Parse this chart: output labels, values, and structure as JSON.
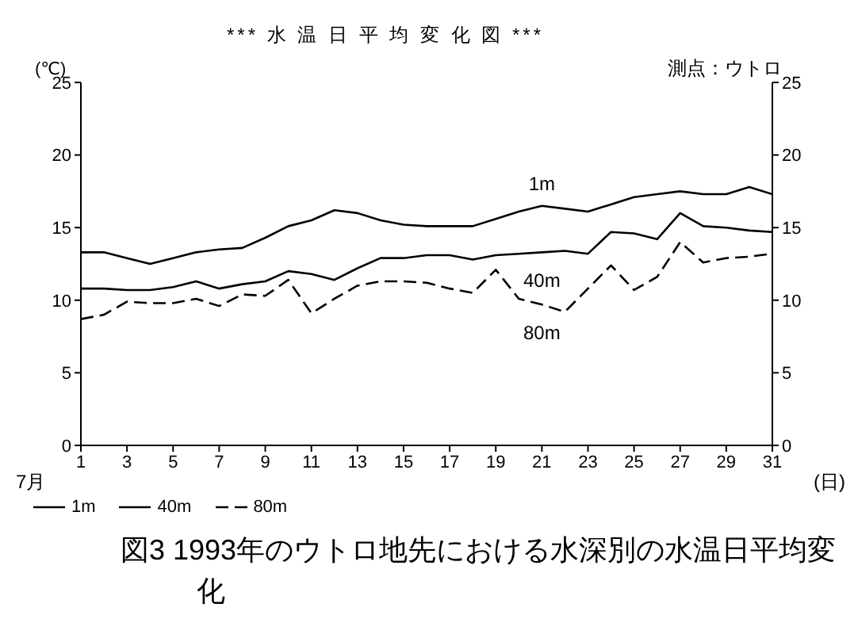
{
  "chart_data": {
    "type": "line",
    "title": "*** 水 温 日 平 均 変 化 図 ***",
    "subtitle": "測点：ウトロ",
    "ylabel": "(℃)",
    "xlabel": "(日)",
    "annotations": [
      "7月",
      "図3 1993年のウトロ地先における水深別の水温日平均変化"
    ],
    "x": [
      1,
      2,
      3,
      4,
      5,
      6,
      7,
      8,
      9,
      10,
      11,
      12,
      13,
      14,
      15,
      16,
      17,
      18,
      19,
      20,
      21,
      22,
      23,
      24,
      25,
      26,
      27,
      28,
      29,
      30,
      31
    ],
    "series": [
      {
        "name": "1m",
        "color": "#000000",
        "line_style": "solid",
        "values": [
          13.3,
          13.3,
          12.9,
          12.5,
          12.9,
          13.3,
          13.5,
          13.6,
          14.3,
          15.1,
          15.5,
          16.2,
          16.0,
          15.5,
          15.2,
          15.1,
          15.1,
          15.1,
          15.6,
          16.1,
          16.5,
          16.3,
          16.1,
          16.6,
          17.1,
          17.3,
          17.5,
          17.3,
          17.3,
          17.8,
          17.3
        ]
      },
      {
        "name": "40m",
        "color": "#000000",
        "line_style": "solid",
        "values": [
          10.8,
          10.8,
          10.7,
          10.7,
          10.9,
          11.3,
          10.8,
          11.1,
          11.3,
          12.0,
          11.8,
          11.4,
          12.2,
          12.9,
          12.9,
          13.1,
          13.1,
          12.8,
          13.1,
          13.2,
          13.3,
          13.4,
          13.2,
          14.7,
          14.6,
          14.2,
          16.0,
          15.1,
          15.0,
          14.8,
          14.7
        ]
      },
      {
        "name": "80m",
        "color": "#000000",
        "line_style": "dashed",
        "values": [
          8.7,
          9.0,
          9.9,
          9.8,
          9.8,
          10.1,
          9.6,
          10.4,
          10.3,
          11.4,
          9.1,
          10.1,
          11.0,
          11.3,
          11.3,
          11.2,
          10.8,
          10.5,
          12.1,
          10.1,
          9.7,
          9.2,
          10.8,
          12.4,
          10.7,
          11.6,
          14.0,
          12.6,
          12.9,
          13.0,
          13.2
        ]
      }
    ],
    "xlim": [
      1,
      31
    ],
    "xticks": [
      1,
      3,
      5,
      7,
      9,
      11,
      13,
      15,
      17,
      19,
      21,
      23,
      25,
      27,
      29,
      31
    ],
    "ylim": [
      0,
      25
    ],
    "yticks": [
      0,
      5,
      10,
      15,
      20,
      25
    ],
    "y2lim": [
      0,
      25
    ],
    "y2ticks": [
      0,
      5,
      10,
      15,
      20,
      25
    ],
    "legend": "bottom left",
    "marker": "none"
  }
}
